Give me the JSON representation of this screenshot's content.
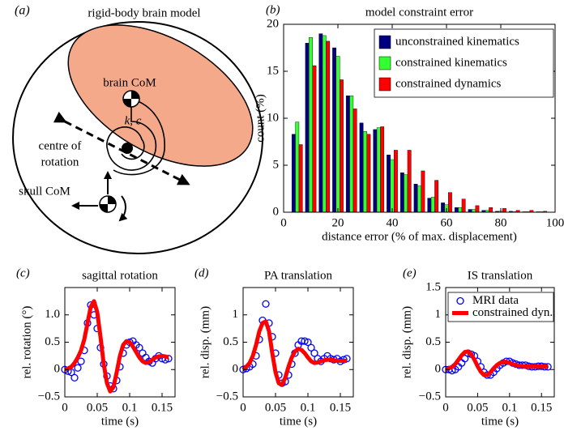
{
  "diagram": {
    "panel_label": "(a)",
    "title": "rigid-body brain model",
    "labels": {
      "brain_com": "brain CoM",
      "spring": "k, c",
      "centre_of_rotation": [
        "centre of",
        "rotation"
      ],
      "skull_com": "skull CoM"
    }
  },
  "chart_data": [
    {
      "type": "bar",
      "panel_label": "(b)",
      "title": "model constraint error",
      "xlabel": "distance error (% of max. displacement)",
      "ylabel": "count (%)",
      "x": [
        5,
        10,
        15,
        20,
        25,
        30,
        35,
        40,
        45,
        50,
        55,
        60,
        65,
        70,
        75,
        80,
        85,
        90,
        95
      ],
      "series": [
        {
          "name": "unconstrained kinematics",
          "color": "#00007f",
          "values": [
            8.3,
            18,
            19,
            17.5,
            12.4,
            9.5,
            8.8,
            6.1,
            4.2,
            3.0,
            1.5,
            1.0,
            0.5,
            0.3,
            0.2,
            0.1,
            0.1,
            0.05,
            0.05
          ]
        },
        {
          "name": "constrained kinematics",
          "color": "#33ff33",
          "values": [
            9.6,
            18.6,
            18.8,
            16.6,
            12.4,
            8.6,
            9.0,
            5.6,
            4.0,
            2.8,
            1.6,
            0.8,
            0.5,
            0.3,
            0.2,
            0.1,
            0.05,
            0.05,
            0.05
          ]
        },
        {
          "name": "constrained dynamics",
          "color": "#ff0000",
          "values": [
            7.2,
            15.6,
            18.2,
            14.1,
            11.0,
            8.3,
            9.1,
            6.6,
            6.6,
            4.4,
            3.4,
            2.1,
            1.4,
            0.7,
            0.5,
            0.4,
            0.2,
            0.2,
            0.1
          ]
        }
      ],
      "xlim": [
        0,
        100
      ],
      "xticks": [
        0,
        20,
        40,
        60,
        80,
        100
      ],
      "ylim": [
        0,
        20
      ],
      "yticks": [
        0,
        5,
        10,
        15,
        20
      ],
      "legend": "upper right"
    },
    {
      "type": "line",
      "panel_label": "(c)",
      "title": "sagittal rotation",
      "xlabel": "time (s)",
      "ylabel": "rel. rotation (°)",
      "x": [
        0,
        0.005,
        0.01,
        0.015,
        0.02,
        0.025,
        0.03,
        0.035,
        0.04,
        0.045,
        0.05,
        0.055,
        0.06,
        0.065,
        0.07,
        0.075,
        0.08,
        0.085,
        0.09,
        0.095,
        0.1,
        0.105,
        0.11,
        0.115,
        0.12,
        0.125,
        0.13,
        0.135,
        0.14,
        0.145,
        0.15,
        0.155,
        0.16
      ],
      "series": [
        {
          "style": "markers",
          "color": "#0000ff",
          "values": [
            0,
            -0.03,
            -0.05,
            -0.15,
            0.03,
            0.15,
            0.35,
            0.85,
            1.18,
            1.0,
            0.75,
            0.4,
            0.1,
            -0.12,
            -0.3,
            -0.35,
            -0.2,
            0.05,
            0.3,
            0.45,
            0.5,
            0.52,
            0.45,
            0.4,
            0.3,
            0.22,
            0.15,
            0.12,
            0.2,
            0.25,
            0.2,
            0.18,
            0.2
          ]
        },
        {
          "style": "line",
          "color": "#ff0000",
          "values": [
            0,
            0.02,
            0.05,
            0.12,
            0.22,
            0.35,
            0.55,
            0.85,
            1.15,
            1.25,
            1.05,
            0.6,
            0.1,
            -0.25,
            -0.4,
            -0.32,
            -0.05,
            0.25,
            0.45,
            0.52,
            0.5,
            0.42,
            0.32,
            0.22,
            0.15,
            0.12,
            0.14,
            0.18,
            0.22,
            0.24,
            0.25,
            0.24,
            0.22
          ]
        }
      ],
      "xlim": [
        0,
        0.17
      ],
      "xticks": [
        0,
        0.05,
        0.1,
        0.15
      ],
      "ylim": [
        -0.5,
        1.5
      ],
      "yticks": [
        {
          "value": -0.5,
          "label": "−0.5"
        },
        0,
        0.5,
        {
          "value": 1,
          "label": "1.0"
        }
      ]
    },
    {
      "type": "line",
      "panel_label": "(d)",
      "title": "PA translation",
      "xlabel": "time (s)",
      "ylabel": "rel. disp. (mm)",
      "x": [
        0,
        0.005,
        0.01,
        0.015,
        0.02,
        0.025,
        0.03,
        0.035,
        0.04,
        0.045,
        0.05,
        0.055,
        0.06,
        0.065,
        0.07,
        0.075,
        0.08,
        0.085,
        0.09,
        0.095,
        0.1,
        0.105,
        0.11,
        0.115,
        0.12,
        0.125,
        0.13,
        0.135,
        0.14,
        0.145,
        0.15,
        0.155,
        0.16
      ],
      "series": [
        {
          "style": "markers",
          "color": "#0000ff",
          "values": [
            0,
            0.02,
            0.05,
            0.1,
            0.25,
            0.55,
            0.9,
            1.2,
            0.85,
            0.6,
            0.3,
            -0.1,
            -0.25,
            -0.22,
            -0.1,
            0.1,
            0.3,
            0.45,
            0.52,
            0.52,
            0.5,
            0.4,
            0.3,
            0.2,
            0.15,
            0.2,
            0.25,
            0.2,
            0.18,
            0.2,
            0.15,
            0.18,
            0.2
          ]
        },
        {
          "style": "line",
          "color": "#ff0000",
          "values": [
            0,
            0.05,
            0.12,
            0.25,
            0.45,
            0.7,
            0.85,
            0.88,
            0.7,
            0.3,
            -0.05,
            -0.25,
            -0.28,
            -0.15,
            0.05,
            0.22,
            0.33,
            0.38,
            0.36,
            0.3,
            0.22,
            0.15,
            0.12,
            0.13,
            0.15,
            0.17,
            0.18,
            0.18,
            0.17,
            0.16,
            0.16,
            0.16,
            0.16
          ]
        }
      ],
      "xlim": [
        0,
        0.17
      ],
      "xticks": [
        0,
        0.05,
        0.1,
        0.15
      ],
      "ylim": [
        -0.5,
        1.5
      ],
      "yticks": [
        {
          "value": -0.5,
          "label": "−0.5"
        },
        0,
        0.5,
        1
      ]
    },
    {
      "type": "line",
      "panel_label": "(e)",
      "title": "IS translation",
      "xlabel": "time (s)",
      "ylabel": "rel. disp. (mm)",
      "x": [
        0,
        0.005,
        0.01,
        0.015,
        0.02,
        0.025,
        0.03,
        0.035,
        0.04,
        0.045,
        0.05,
        0.055,
        0.06,
        0.065,
        0.07,
        0.075,
        0.08,
        0.085,
        0.09,
        0.095,
        0.1,
        0.105,
        0.11,
        0.115,
        0.12,
        0.125,
        0.13,
        0.135,
        0.14,
        0.145,
        0.15,
        0.155,
        0.16
      ],
      "series": [
        {
          "name": "MRI data",
          "style": "markers",
          "color": "#0000ff",
          "values": [
            0,
            0,
            -0.02,
            0,
            0.05,
            0.12,
            0.2,
            0.3,
            0.28,
            0.25,
            0.15,
            0.05,
            -0.05,
            -0.1,
            -0.1,
            -0.05,
            0.02,
            0.08,
            0.12,
            0.15,
            0.15,
            0.12,
            0.1,
            0.08,
            0.08,
            0.08,
            0.06,
            0.05,
            0.05,
            0.06,
            0.06,
            0.05,
            0.05
          ]
        },
        {
          "name": "constrained dyn.",
          "style": "line",
          "color": "#ff0000",
          "values": [
            0,
            0.02,
            0.05,
            0.1,
            0.18,
            0.26,
            0.32,
            0.33,
            0.28,
            0.18,
            0.06,
            -0.04,
            -0.1,
            -0.1,
            -0.05,
            0.02,
            0.08,
            0.12,
            0.14,
            0.14,
            0.12,
            0.1,
            0.08,
            0.07,
            0.06,
            0.06,
            0.06,
            0.06,
            0.06,
            0.06,
            0.06,
            0.06,
            0.06
          ]
        }
      ],
      "xlim": [
        0,
        0.17
      ],
      "xticks": [
        0,
        0.05,
        0.1,
        0.15
      ],
      "ylim": [
        -0.5,
        1.5
      ],
      "yticks": [
        {
          "value": -0.5,
          "label": "−0.5"
        },
        0,
        0.5,
        1,
        1.5
      ],
      "legend": "upper left"
    }
  ]
}
